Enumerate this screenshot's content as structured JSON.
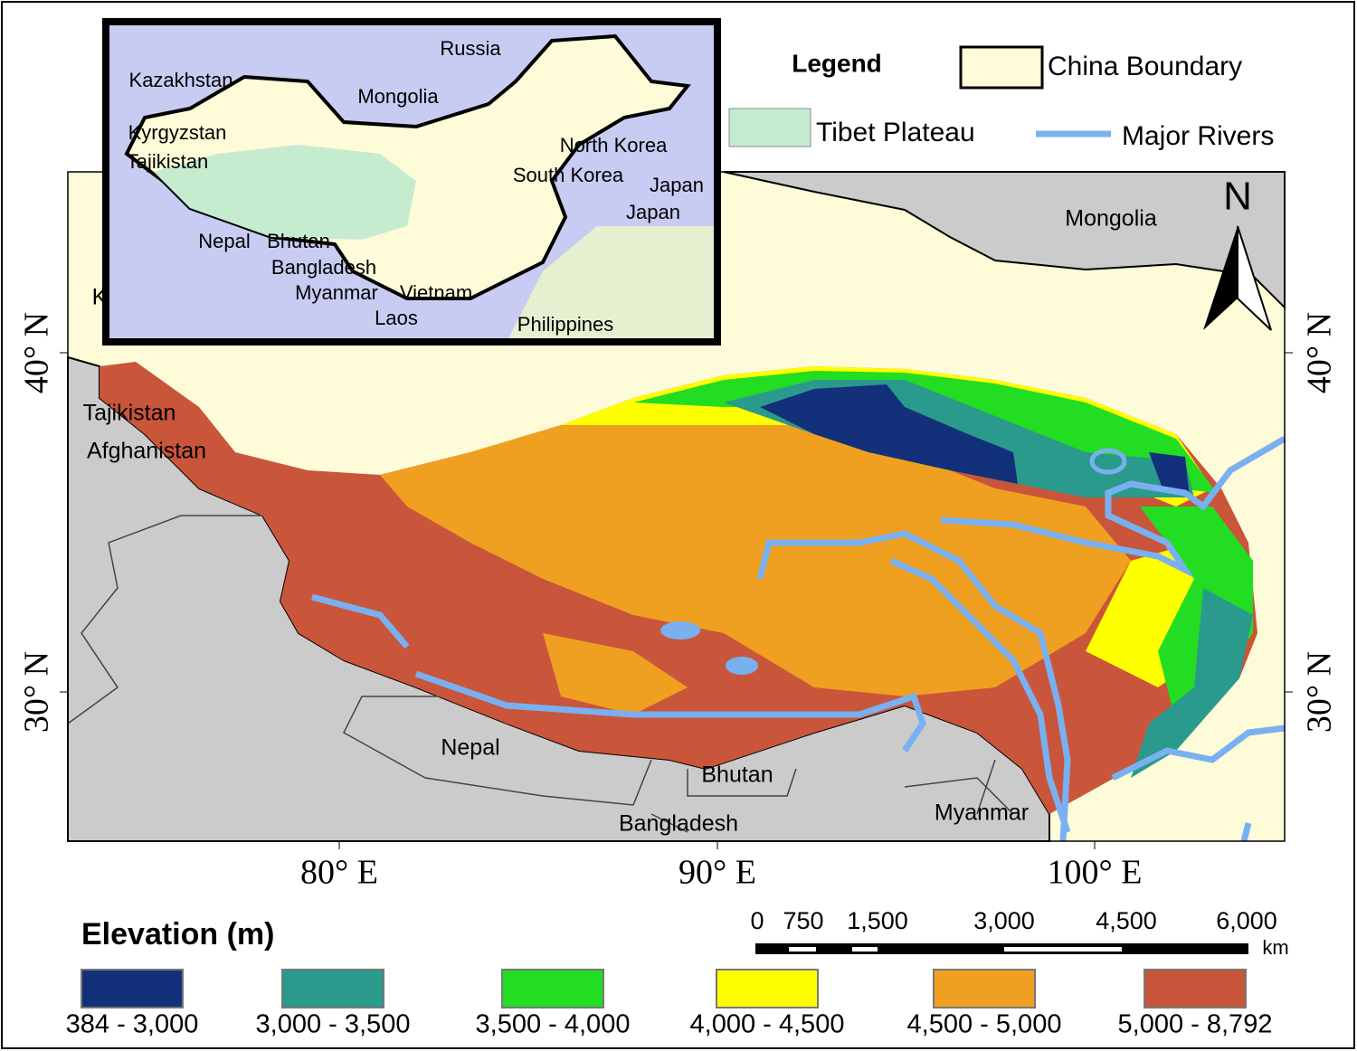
{
  "inset_labels": [
    "Russia",
    "Kazakhstan",
    "Mongolia",
    "Kyrgyzstan",
    "Tajikistan",
    "North Korea",
    "South Korea",
    "Japan",
    "Japan",
    "Nepal",
    "Bhutan",
    "Bangladesh",
    "Myanmar",
    "Vietnam",
    "Laos",
    "Philippines"
  ],
  "legend": {
    "title": "Legend",
    "items": [
      {
        "label": "China Boundary"
      },
      {
        "label": "Tibet Plateau"
      },
      {
        "label": "Major Rivers"
      }
    ]
  },
  "map_labels": [
    "Mongolia",
    "Tajikistan",
    "Afghanistan",
    "Nepal",
    "Bhutan",
    "Bangladesh",
    "Myanmar",
    "K"
  ],
  "north_arrow": "N",
  "latitude_labels": [
    "40° N",
    "30° N"
  ],
  "longitude_labels": [
    "80° E",
    "90° E",
    "100° E"
  ],
  "scale_bar": {
    "labels": [
      "0",
      "750",
      "1,500",
      "3,000",
      "4,500",
      "6,000"
    ],
    "unit": "km"
  },
  "elevation": {
    "title": "Elevation (m)",
    "classes": [
      {
        "label": "384 - 3,000",
        "color": "#13307a"
      },
      {
        "label": "3,000 - 3,500",
        "color": "#2a9a8c"
      },
      {
        "label": "3,500 - 4,000",
        "color": "#22dd22"
      },
      {
        "label": "4,000 - 4,500",
        "color": "#ffff00"
      },
      {
        "label": "4,500 - 5,000",
        "color": "#f0a020"
      },
      {
        "label": "5,000 - 8,792",
        "color": "#c9553b"
      }
    ]
  }
}
